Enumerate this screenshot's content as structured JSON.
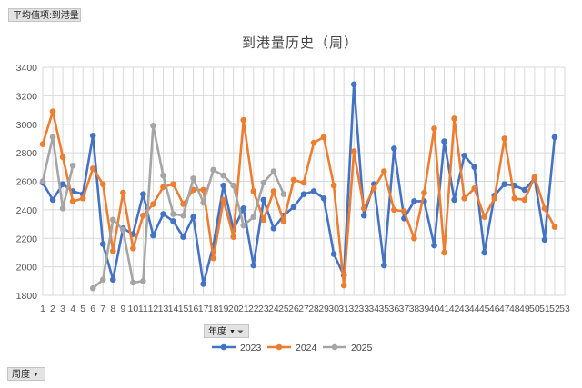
{
  "pivot": {
    "value_field": "平均值项:到港量",
    "series_field": "年度",
    "axis_field": "周度"
  },
  "colors": {
    "s2023": "#4472C4",
    "s2024": "#ED7D31",
    "s2025": "#A5A5A5"
  },
  "chart_data": {
    "type": "line",
    "title": "到港量历史（周）",
    "xlabel": "",
    "ylabel": "",
    "xlim": [
      1,
      53
    ],
    "ylim": [
      1800,
      3400
    ],
    "ytick_step": 200,
    "x_ticks": [
      1,
      2,
      3,
      4,
      5,
      6,
      7,
      8,
      9,
      10,
      11,
      12,
      13,
      14,
      15,
      16,
      17,
      18,
      19,
      20,
      21,
      22,
      23,
      24,
      25,
      26,
      27,
      28,
      29,
      30,
      31,
      32,
      33,
      34,
      35,
      36,
      37,
      38,
      39,
      40,
      41,
      42,
      43,
      44,
      45,
      46,
      47,
      48,
      49,
      50,
      51,
      52,
      53
    ],
    "grid": true,
    "legend": "bottom",
    "series": [
      {
        "name": "2023",
        "color": "#4472C4",
        "x": [
          1,
          2,
          3,
          4,
          5,
          6,
          7,
          8,
          9,
          10,
          11,
          12,
          13,
          14,
          15,
          16,
          17,
          18,
          19,
          20,
          21,
          22,
          23,
          24,
          25,
          26,
          27,
          28,
          29,
          30,
          31,
          32,
          33,
          34,
          35,
          36,
          37,
          38,
          39,
          40,
          41,
          42,
          43,
          44,
          45,
          46,
          47,
          48,
          49,
          50,
          51,
          52
        ],
        "values": [
          2590,
          2470,
          2580,
          2530,
          2510,
          2920,
          2160,
          1910,
          2270,
          2230,
          2510,
          2220,
          2370,
          2320,
          2210,
          2350,
          1880,
          2150,
          2570,
          2260,
          2410,
          2010,
          2470,
          2270,
          2360,
          2420,
          2510,
          2530,
          2480,
          2090,
          1940,
          3280,
          2360,
          2580,
          2010,
          2830,
          2340,
          2460,
          2460,
          2150,
          2880,
          2470,
          2780,
          2700,
          2100,
          2500,
          2580,
          2570,
          2540,
          2620,
          2190,
          2910
        ]
      },
      {
        "name": "2024",
        "color": "#ED7D31",
        "x": [
          1,
          2,
          3,
          4,
          5,
          6,
          7,
          8,
          9,
          10,
          11,
          12,
          13,
          14,
          15,
          16,
          17,
          18,
          19,
          20,
          21,
          22,
          23,
          24,
          25,
          26,
          27,
          28,
          29,
          30,
          31,
          32,
          33,
          34,
          35,
          36,
          37,
          38,
          39,
          40,
          41,
          42,
          43,
          44,
          45,
          46,
          47,
          48,
          49,
          50,
          51,
          52
        ],
        "values": [
          2860,
          3090,
          2770,
          2460,
          2480,
          2690,
          2580,
          2110,
          2520,
          2130,
          2360,
          2440,
          2560,
          2580,
          2440,
          2540,
          2540,
          2060,
          2470,
          2210,
          3030,
          2530,
          2330,
          2530,
          2320,
          2610,
          2590,
          2870,
          2910,
          2570,
          1870,
          2810,
          2410,
          2550,
          2670,
          2400,
          2390,
          2200,
          2520,
          2970,
          2100,
          3040,
          2480,
          2550,
          2350,
          2480,
          2900,
          2480,
          2470,
          2630,
          2410,
          2280
        ]
      },
      {
        "name": "2025",
        "color": "#A5A5A5",
        "x": [
          1,
          2,
          3,
          4,
          5,
          6,
          7,
          8,
          9,
          10,
          11,
          12,
          13,
          14,
          15,
          16,
          17,
          18,
          19,
          20,
          21,
          22,
          23,
          24,
          25
        ],
        "values": [
          2600,
          2910,
          2410,
          2710,
          null,
          1850,
          1910,
          2330,
          2260,
          1890,
          1900,
          2990,
          2640,
          2370,
          2360,
          2620,
          2450,
          2680,
          2640,
          2570,
          2290,
          2350,
          2590,
          2670,
          2510
        ]
      }
    ]
  }
}
